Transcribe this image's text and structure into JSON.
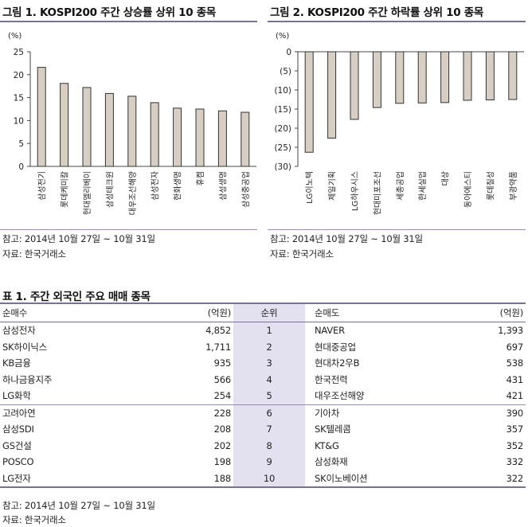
{
  "chart_data": [
    {
      "type": "bar",
      "title": "그림 1. KOSPI200 주간 상승률 상위 10 종목",
      "unit": "(%)",
      "categories": [
        "삼성전기",
        "롯데케미칼",
        "현대엘리베이",
        "삼성테크윈",
        "대우조선해양",
        "삼성전자",
        "한화생명",
        "휴켐",
        "삼성생명",
        "삼성중공업"
      ],
      "values": [
        21.6,
        18.1,
        17.2,
        15.9,
        15.3,
        13.9,
        12.7,
        12.5,
        12.1,
        11.8
      ],
      "ylim": [
        0,
        25
      ],
      "yticks": [
        0,
        5,
        10,
        15,
        20,
        25
      ],
      "ytick_labels": [
        "0",
        "5",
        "10",
        "15",
        "20",
        "25"
      ],
      "grid": false,
      "colors": {
        "fill": "#d7cfc3",
        "stroke": "#333333"
      }
    },
    {
      "type": "bar",
      "title": "그림 2. KOSPI200 주간 하락률 상위 10 종목",
      "unit": "(%)",
      "categories": [
        "LG이노텍",
        "제일기획",
        "LG하우시스",
        "현대미포조선",
        "세종공업",
        "한세실업",
        "대상",
        "동아에스티",
        "롯데칠성",
        "부광약품"
      ],
      "values": [
        -26.3,
        -22.6,
        -17.7,
        -14.6,
        -13.5,
        -13.4,
        -13.3,
        -12.7,
        -12.6,
        -12.5
      ],
      "ylim": [
        -30,
        0
      ],
      "yticks": [
        0,
        -5,
        -10,
        -15,
        -20,
        -25,
        -30
      ],
      "ytick_labels": [
        "0",
        "(5)",
        "(10)",
        "(15)",
        "(20)",
        "(25)",
        "(30)"
      ],
      "grid": false,
      "colors": {
        "fill": "#d7cfc3",
        "stroke": "#333333"
      }
    }
  ],
  "chart1": {
    "note": "참고: 2014년 10월 27일 ~ 10월 31일",
    "source": "자료: 한국거래소"
  },
  "chart2": {
    "note": "참고: 2014년 10월 27일 ~ 10월 31일",
    "source": "자료: 한국거래소"
  },
  "table": {
    "title": "표 1. 주간 외국인 주요 매매 종목",
    "headers": {
      "buy_name": "순매수",
      "buy_amount": "(억원)",
      "rank": "순위",
      "sell_name": "순매도",
      "sell_amount": "(억원)"
    },
    "rows": [
      {
        "buy_name": "삼성전자",
        "buy_amount": "4,852",
        "rank": "1",
        "sell_name": "NAVER",
        "sell_amount": "1,393"
      },
      {
        "buy_name": "SK하이닉스",
        "buy_amount": "1,711",
        "rank": "2",
        "sell_name": "현대중공업",
        "sell_amount": "697"
      },
      {
        "buy_name": "KB금융",
        "buy_amount": "935",
        "rank": "3",
        "sell_name": "현대차2우B",
        "sell_amount": "538"
      },
      {
        "buy_name": "하나금융지주",
        "buy_amount": "566",
        "rank": "4",
        "sell_name": "한국전력",
        "sell_amount": "431"
      },
      {
        "buy_name": "LG화학",
        "buy_amount": "254",
        "rank": "5",
        "sell_name": "대우조선해양",
        "sell_amount": "421"
      },
      {
        "buy_name": "고려아연",
        "buy_amount": "228",
        "rank": "6",
        "sell_name": "기아차",
        "sell_amount": "390"
      },
      {
        "buy_name": "삼성SDI",
        "buy_amount": "208",
        "rank": "7",
        "sell_name": "SK텔레콤",
        "sell_amount": "357"
      },
      {
        "buy_name": "GS건설",
        "buy_amount": "202",
        "rank": "8",
        "sell_name": "KT&G",
        "sell_amount": "352"
      },
      {
        "buy_name": "POSCO",
        "buy_amount": "198",
        "rank": "9",
        "sell_name": "삼성화재",
        "sell_amount": "332"
      },
      {
        "buy_name": "LG전자",
        "buy_amount": "188",
        "rank": "10",
        "sell_name": "SK이노베이션",
        "sell_amount": "322"
      }
    ],
    "note": "참고: 2014년 10월 27일 ~ 10월 31일",
    "source": "자료: 한국거래소"
  }
}
